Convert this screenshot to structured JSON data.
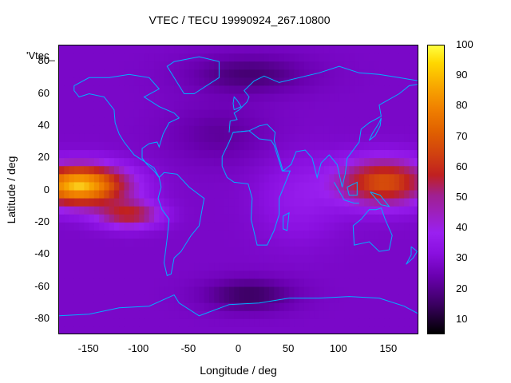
{
  "chart_data": {
    "type": "heatmap",
    "title": "VTEC / TECU 19990924_267.10800",
    "xlabel": "Longitude / deg",
    "ylabel": "Latitude / deg",
    "xlim": [
      -180,
      180
    ],
    "ylim": [
      -90,
      90
    ],
    "x_ticks": [
      -150,
      -100,
      -50,
      0,
      50,
      100,
      150
    ],
    "y_ticks": [
      -80,
      -60,
      -40,
      -20,
      0,
      20,
      40,
      60,
      80
    ],
    "colorbar": {
      "ticks": [
        10,
        20,
        30,
        40,
        50,
        60,
        70,
        80,
        90,
        100
      ],
      "range": [
        5,
        100
      ],
      "palette": "black-purple-red-orange-yellow"
    },
    "legend_key": "'Vtec_",
    "overlay": "coastlines",
    "coastline_color": "#00b0ff",
    "description_values": {
      "peak_region_1_lon_range": [
        -180,
        -100
      ],
      "peak_region_1_lat_range": [
        -20,
        20
      ],
      "peak_region_2_lon_range": [
        90,
        180
      ],
      "peak_region_2_lat_range": [
        -20,
        30
      ],
      "max_value": 100
    }
  }
}
